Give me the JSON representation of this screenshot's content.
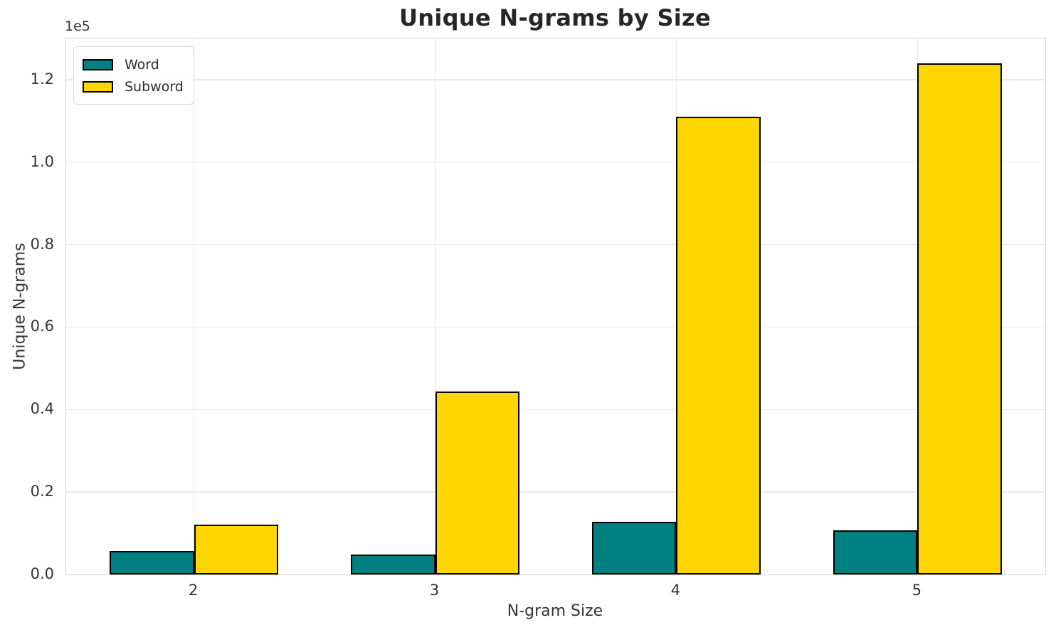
{
  "figure": {
    "title": "Unique N-grams by Size"
  },
  "axes": {
    "xlabel": "N-gram Size",
    "ylabel": "Unique N-grams",
    "offset_text": "1e5"
  },
  "legend": {
    "items": [
      {
        "label": "Word",
        "color": "#008080"
      },
      {
        "label": "Subword",
        "color": "#FFD600"
      }
    ]
  },
  "chart_data": {
    "type": "bar",
    "title": "Unique N-grams by Size",
    "xlabel": "N-gram Size",
    "ylabel": "Unique N-grams",
    "categories": [
      "2",
      "3",
      "4",
      "5"
    ],
    "x": [
      2,
      3,
      4,
      5
    ],
    "series": [
      {
        "name": "Word",
        "color": "#008080",
        "values": [
          5700,
          4800,
          12700,
          10700
        ]
      },
      {
        "name": "Subword",
        "color": "#FFD600",
        "values": [
          12100,
          44300,
          111000,
          124000
        ]
      }
    ],
    "bar_width": 0.35,
    "edge_color": "#000000",
    "xlim": [
      1.47,
      5.53
    ],
    "ylim": [
      0,
      130000
    ],
    "yticks": [
      0,
      20000,
      40000,
      60000,
      80000,
      100000,
      120000
    ],
    "ytick_labels": [
      "0.0",
      "0.2",
      "0.4",
      "0.6",
      "0.8",
      "1.0",
      "1.2"
    ],
    "y_offset_label": "1e5",
    "grid": true,
    "grid_color": "#e9e9e9",
    "legend_position": "upper left"
  }
}
